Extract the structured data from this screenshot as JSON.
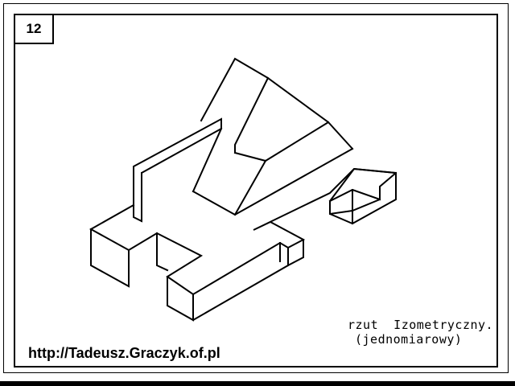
{
  "sheet": {
    "number": "12",
    "projection_label": "rzut  Izometryczny.",
    "projection_sublabel": "(jednomiarowy)",
    "url": "http://Tadeusz.Graczyk.of.pl",
    "drawing_subject": "isometric-solid",
    "line_color": "#000000",
    "background_color": "#ffffff"
  }
}
